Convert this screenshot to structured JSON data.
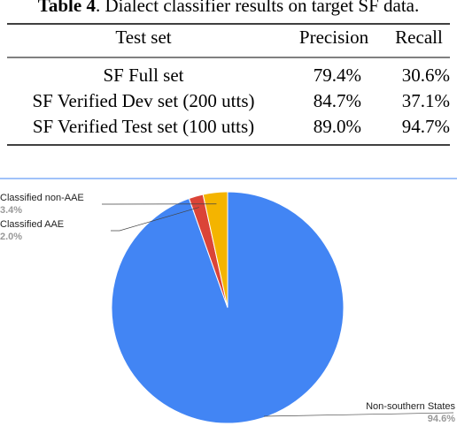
{
  "caption": {
    "label": "Table 4",
    "text": ". Dialect classifier results on target SF data."
  },
  "table": {
    "header": [
      "Test set",
      "Precision",
      "Recall"
    ],
    "rows": [
      [
        "SF Full set",
        "79.4%",
        "30.6%"
      ],
      [
        "SF Verified Dev set (200 utts)",
        "84.7%",
        "37.1%"
      ],
      [
        "SF Verified Test set (100 utts)",
        "89.0%",
        "94.7%"
      ]
    ]
  },
  "chart_data": {
    "type": "pie",
    "categories": [
      "Non-southern States",
      "Classified AAE",
      "Classified non-AAE"
    ],
    "values": [
      94.6,
      2.0,
      3.4
    ],
    "value_labels": [
      "94.6%",
      "2.0%",
      "3.4%"
    ],
    "colors": [
      "#4285f4",
      "#db4437",
      "#f4b400"
    ]
  }
}
